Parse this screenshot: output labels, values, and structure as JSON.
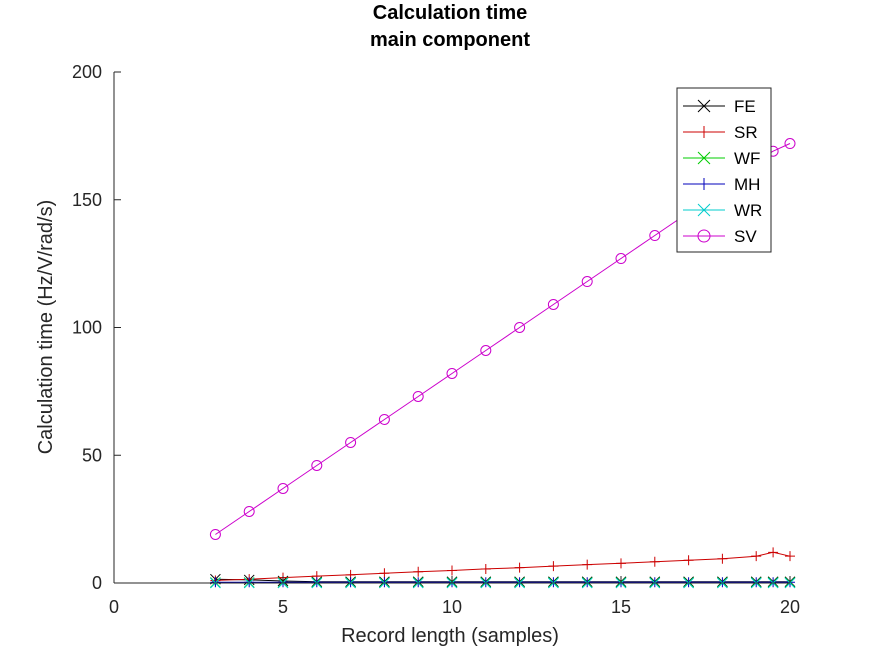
{
  "chart_data": {
    "type": "line",
    "title": [
      "Calculation time",
      "main component"
    ],
    "xlabel": "Record length (samples)",
    "ylabel": "Calculation time (Hz/V/rad/s)",
    "xlim": [
      0,
      20
    ],
    "ylim": [
      0,
      200
    ],
    "xticks": [
      0,
      5,
      10,
      15,
      20
    ],
    "yticks": [
      0,
      50,
      100,
      150,
      200
    ],
    "grid": false,
    "legend_position": "top-right",
    "x": [
      3,
      4,
      5,
      6,
      7,
      8,
      9,
      10,
      11,
      12,
      13,
      14,
      15,
      16,
      17,
      18,
      19,
      19.5,
      20
    ],
    "series": [
      {
        "name": "FE",
        "color": "#000000",
        "marker": "x",
        "values": [
          1.5,
          1.2,
          0.8,
          0.5,
          0.5,
          0.5,
          0.5,
          0.5,
          0.5,
          0.5,
          0.5,
          0.5,
          0.5,
          0.5,
          0.5,
          0.5,
          0.5,
          0.5,
          0.5
        ]
      },
      {
        "name": "SR",
        "color": "#cc0000",
        "marker": "+",
        "values": [
          1.0,
          1.5,
          2.1,
          2.7,
          3.2,
          3.8,
          4.4,
          4.9,
          5.5,
          6.0,
          6.6,
          7.2,
          7.7,
          8.3,
          8.9,
          9.5,
          10.5,
          12.0,
          10.5
        ]
      },
      {
        "name": "WF",
        "color": "#00cc00",
        "marker": "x",
        "values": [
          0.2,
          0.2,
          0.2,
          0.2,
          0.2,
          0.2,
          0.2,
          0.2,
          0.2,
          0.2,
          0.2,
          0.2,
          0.2,
          0.2,
          0.2,
          0.2,
          0.2,
          0.2,
          0.2
        ]
      },
      {
        "name": "MH",
        "color": "#0000bb",
        "marker": "+",
        "values": [
          0.3,
          0.3,
          0.3,
          0.3,
          0.3,
          0.3,
          0.3,
          0.3,
          0.3,
          0.3,
          0.3,
          0.3,
          0.3,
          0.3,
          0.3,
          0.3,
          0.3,
          0.3,
          0.3
        ]
      },
      {
        "name": "WR",
        "color": "#00cccc",
        "marker": "x",
        "values": [
          0.0,
          0.0,
          0.0,
          0.0,
          0.0,
          0.0,
          0.0,
          0.0,
          0.0,
          0.0,
          0.0,
          0.0,
          0.0,
          0.0,
          0.0,
          0.0,
          0.0,
          0.0,
          0.0
        ]
      },
      {
        "name": "SV",
        "color": "#cc00cc",
        "marker": "o",
        "values": [
          19,
          28,
          37,
          46,
          55,
          64,
          73,
          82,
          91,
          100,
          109,
          118,
          127,
          136,
          145,
          155,
          165,
          169,
          172
        ]
      }
    ]
  }
}
